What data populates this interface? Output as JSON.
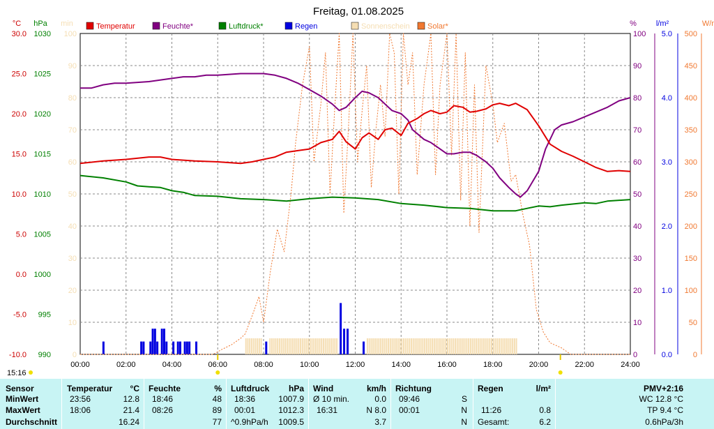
{
  "title": "Freitag, 01.08.2025",
  "clock": "15:16",
  "colors": {
    "temperature": "#e00000",
    "humidity": "#800080",
    "pressure": "#008000",
    "rain": "#0000e0",
    "sunshine": "#f5deb3",
    "solar": "#f07830",
    "left_axis_temp": "#cc0000",
    "left_axis_pressure": "#008000",
    "min_axis": "#f5deb3",
    "table_bg": "#c8f4f4"
  },
  "chart_data": {
    "type": "line",
    "legend": [
      {
        "key": "temperature",
        "label": "Temperatur"
      },
      {
        "key": "humidity",
        "label": "Feuchte*"
      },
      {
        "key": "pressure",
        "label": "Luftdruck*"
      },
      {
        "key": "rain",
        "label": "Regen"
      },
      {
        "key": "sunshine",
        "label": "Sonnenschein"
      },
      {
        "key": "solar",
        "label": "Solar*"
      }
    ],
    "axes": {
      "temp_c": {
        "unit": "°C",
        "range": [
          -10,
          30
        ],
        "ticks": [
          "30.0",
          "25.0",
          "20.0",
          "15.0",
          "10.0",
          "5.0",
          "0.0",
          "-5.0",
          "-10.0"
        ]
      },
      "pressure_hpa": {
        "unit": "hPa",
        "range": [
          990,
          1030
        ],
        "ticks": [
          "1030",
          "1025",
          "1020",
          "1015",
          "1010",
          "1005",
          "1000",
          "995",
          "990"
        ]
      },
      "sunshine_min": {
        "unit": "min",
        "range": [
          0,
          100
        ],
        "ticks": [
          "100",
          "90",
          "80",
          "70",
          "60",
          "50",
          "40",
          "30",
          "20",
          "10",
          "0"
        ]
      },
      "humidity_pct": {
        "unit": "%",
        "range": [
          0,
          100
        ],
        "ticks": [
          "100",
          "90",
          "80",
          "70",
          "60",
          "50",
          "40",
          "30",
          "20",
          "10",
          "0"
        ]
      },
      "rain_lm2": {
        "unit": "l/m²",
        "range": [
          0,
          5
        ],
        "ticks": [
          "5.0",
          "4.0",
          "3.0",
          "2.0",
          "1.0",
          "0.0"
        ]
      },
      "solar_wm2": {
        "unit": "W/m²",
        "range": [
          0,
          500
        ],
        "ticks": [
          "500",
          "450",
          "400",
          "350",
          "300",
          "250",
          "200",
          "150",
          "100",
          "50",
          "0"
        ]
      },
      "x_time_h": {
        "range": [
          0,
          24
        ],
        "ticks": [
          "00:00",
          "02:00",
          "04:00",
          "06:00",
          "08:00",
          "10:00",
          "12:00",
          "14:00",
          "16:00",
          "18:00",
          "20:00",
          "22:00",
          "24:00"
        ]
      }
    },
    "grid": true,
    "series": [
      {
        "name": "Temperatur",
        "axis": "temp_c",
        "x": [
          0,
          1,
          2,
          3,
          3.5,
          4,
          5,
          6,
          7,
          7.5,
          8,
          8.5,
          9,
          9.5,
          10,
          10.5,
          11,
          11.3,
          11.6,
          12,
          12.3,
          12.6,
          13,
          13.3,
          13.6,
          14,
          14.3,
          14.7,
          15,
          15.3,
          15.7,
          16,
          16.3,
          16.7,
          17,
          17.3,
          17.7,
          18,
          18.3,
          18.7,
          19,
          19.5,
          20,
          20.5,
          21,
          21.5,
          22,
          22.5,
          23,
          23.5,
          24
        ],
        "y": [
          13.8,
          14.1,
          14.3,
          14.6,
          14.6,
          14.3,
          14.1,
          14.0,
          13.8,
          14.0,
          14.3,
          14.6,
          15.2,
          15.4,
          15.6,
          16.4,
          16.8,
          17.8,
          16.5,
          15.6,
          17.0,
          17.6,
          16.8,
          18.0,
          18.2,
          17.3,
          18.8,
          19.4,
          20.0,
          20.4,
          20.0,
          20.2,
          21.0,
          20.8,
          20.2,
          20.3,
          20.6,
          21.1,
          21.3,
          21.0,
          21.3,
          20.5,
          18.5,
          16.2,
          15.3,
          14.7,
          14.0,
          13.3,
          12.8,
          12.9,
          12.8
        ]
      },
      {
        "name": "Feuchte*",
        "axis": "humidity_pct",
        "x": [
          0,
          0.5,
          1,
          1.5,
          2,
          3,
          4,
          4.5,
          5,
          5.5,
          6,
          7,
          8,
          8.5,
          9,
          9.5,
          10,
          10.5,
          11,
          11.3,
          11.6,
          12,
          12.3,
          12.6,
          13,
          13.3,
          13.6,
          14,
          14.3,
          14.5,
          15,
          15.3,
          15.6,
          16,
          16.3,
          16.7,
          17,
          17.3,
          17.7,
          18,
          18.3,
          18.7,
          19,
          19.2,
          19.5,
          20,
          20.3,
          20.7,
          21,
          21.5,
          22,
          22.5,
          23,
          23.5,
          24
        ],
        "y": [
          83,
          83,
          84,
          84.5,
          84.5,
          85,
          86,
          86.5,
          86.5,
          87,
          87,
          87.5,
          87.5,
          87,
          86,
          84.5,
          82.5,
          80.5,
          78,
          76,
          77,
          80,
          82,
          81.5,
          80,
          78,
          76,
          75,
          73,
          70,
          67,
          66,
          64.5,
          62.5,
          62.5,
          63,
          63,
          62,
          60,
          58,
          55,
          52,
          50,
          49,
          51,
          57,
          64,
          70,
          71.5,
          72.5,
          74,
          75.5,
          77,
          79,
          80
        ]
      },
      {
        "name": "Luftdruck*",
        "axis": "pressure_hpa",
        "x": [
          0,
          1,
          2,
          2.5,
          3,
          3.5,
          4,
          4.5,
          5,
          6,
          7,
          8,
          9,
          10,
          11,
          12,
          13,
          14,
          15,
          16,
          17,
          18,
          19,
          19.5,
          20,
          20.5,
          21,
          22,
          22.5,
          23,
          24
        ],
        "y": [
          1012.3,
          1012.0,
          1011.5,
          1011.0,
          1010.9,
          1010.8,
          1010.4,
          1010.2,
          1009.8,
          1009.7,
          1009.4,
          1009.3,
          1009.1,
          1009.4,
          1009.6,
          1009.5,
          1009.3,
          1008.8,
          1008.6,
          1008.3,
          1008.2,
          1007.9,
          1007.9,
          1008.2,
          1008.5,
          1008.4,
          1008.6,
          1008.9,
          1008.8,
          1009.1,
          1009.3
        ]
      },
      {
        "name": "Solar*",
        "axis": "solar_wm2",
        "x": [
          0,
          5.8,
          6.2,
          6.6,
          7,
          7.2,
          7.5,
          7.8,
          8,
          8.3,
          8.6,
          8.9,
          9.2,
          9.4,
          9.7,
          10,
          10.2,
          10.5,
          10.7,
          10.9,
          11.1,
          11.3,
          11.5,
          11.7,
          11.9,
          12.1,
          12.3,
          12.5,
          12.7,
          12.9,
          13.1,
          13.3,
          13.5,
          13.7,
          13.9,
          14.1,
          14.3,
          14.5,
          14.7,
          15,
          15.3,
          15.5,
          15.7,
          16,
          16.2,
          16.4,
          16.6,
          16.8,
          17,
          17.2,
          17.4,
          17.7,
          18,
          18.2,
          18.5,
          18.8,
          19,
          19.3,
          19.6,
          19.9,
          20.2,
          20.5,
          21,
          21.4,
          24
        ],
        "y": [
          0,
          0,
          8,
          15,
          25,
          32,
          60,
          90,
          50,
          130,
          195,
          160,
          250,
          330,
          420,
          480,
          300,
          390,
          470,
          250,
          380,
          500,
          220,
          350,
          500,
          300,
          380,
          450,
          260,
          350,
          420,
          340,
          500,
          470,
          250,
          500,
          420,
          470,
          280,
          420,
          500,
          280,
          420,
          500,
          310,
          500,
          240,
          470,
          200,
          420,
          190,
          450,
          390,
          330,
          360,
          270,
          280,
          220,
          170,
          70,
          35,
          18,
          10,
          0,
          0
        ]
      }
    ],
    "rain_bars_lm2": {
      "x": [
        1.0,
        2.65,
        2.75,
        3.05,
        3.15,
        3.25,
        3.35,
        3.55,
        3.65,
        3.75,
        4.05,
        4.25,
        4.35,
        4.55,
        4.65,
        4.75,
        5.05,
        8.1,
        11.35,
        11.5,
        11.65,
        12.35
      ],
      "y": [
        0.2,
        0.2,
        0.2,
        0.2,
        0.4,
        0.4,
        0.2,
        0.4,
        0.4,
        0.2,
        0.2,
        0.2,
        0.2,
        0.2,
        0.2,
        0.2,
        0.2,
        0.2,
        0.8,
        0.4,
        0.4,
        0.2
      ]
    },
    "sunshine_span_h": {
      "from": [
        7.2,
        8.25,
        12.5
      ],
      "to": [
        7.9,
        11.2,
        19.05
      ],
      "value_min": 5
    }
  },
  "summary": {
    "headers": {
      "sensor": "Sensor",
      "temp": "Temperatur",
      "temp_unit": "°C",
      "hum": "Feuchte",
      "hum_unit": "%",
      "press": "Luftdruck",
      "press_unit": "hPa",
      "wind": "Wind",
      "wind_unit": "km/h",
      "dir": "Richtung",
      "rain": "Regen",
      "rain_unit": "l/m²",
      "pmv": "PMV+2:16"
    },
    "rows": [
      {
        "label": "MinWert",
        "temp_time": "23:56",
        "temp_val": "12.8",
        "hum_time": "18:46",
        "hum_val": "48",
        "press_time": "18:36",
        "press_val": "1007.9",
        "wind_time": "Ø 10 min.",
        "wind_val": "0.0",
        "dir_time": "09:46",
        "dir_val": "S",
        "rain_time": "",
        "rain_val": "",
        "extra": "WC 12.8 °C"
      },
      {
        "label": "MaxWert",
        "temp_time": "18:06",
        "temp_val": "21.4",
        "hum_time": "08:26",
        "hum_val": "89",
        "press_time": "00:01",
        "press_val": "1012.3",
        "wind_time": "16:31",
        "wind_val": "N 8.0",
        "dir_time": "00:01",
        "dir_val": "N",
        "rain_time": "11:26",
        "rain_val": "0.8",
        "extra": "TP 9.4 °C"
      },
      {
        "label": "Durchschnitt",
        "temp_time": "",
        "temp_val": "16.24",
        "hum_time": "",
        "hum_val": "77",
        "press_time": "^0.9hPa/h",
        "press_val": "1009.5",
        "wind_time": "",
        "wind_val": "3.7",
        "dir_time": "",
        "dir_val": "N",
        "rain_time": "Gesamt:",
        "rain_val": "6.2",
        "extra": "0.6hPa/3h"
      }
    ]
  }
}
